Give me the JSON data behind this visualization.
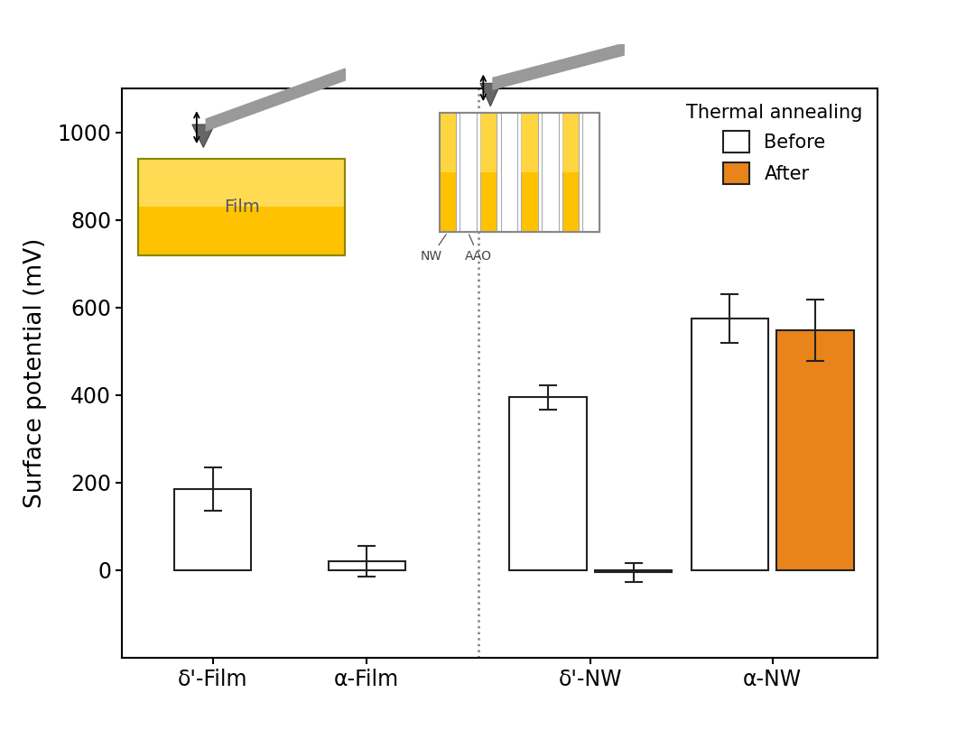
{
  "categories": [
    "δ'-Film",
    "α-Film",
    "δ'-NW",
    "α-NW"
  ],
  "before_values": [
    185,
    20,
    395,
    575
  ],
  "after_values": [
    null,
    null,
    -5,
    548
  ],
  "before_errors": [
    50,
    35,
    28,
    55
  ],
  "after_errors": [
    null,
    null,
    22,
    70
  ],
  "before_color": "#ffffff",
  "after_color": "#E8841A",
  "bar_edge_color": "#222222",
  "error_color": "#222222",
  "ylabel": "Surface potential (mV)",
  "ylim": [
    -200,
    1100
  ],
  "yticks": [
    0,
    200,
    400,
    600,
    800,
    1000
  ],
  "legend_title": "Thermal annealing",
  "legend_before": "Before",
  "legend_after": "After",
  "bar_width": 0.55,
  "group_centers": [
    1.0,
    2.1,
    3.7,
    5.0
  ],
  "xlim": [
    0.35,
    5.75
  ],
  "tick_label_size": 17,
  "axis_label_size": 19,
  "legend_title_size": 15,
  "legend_text_size": 15
}
